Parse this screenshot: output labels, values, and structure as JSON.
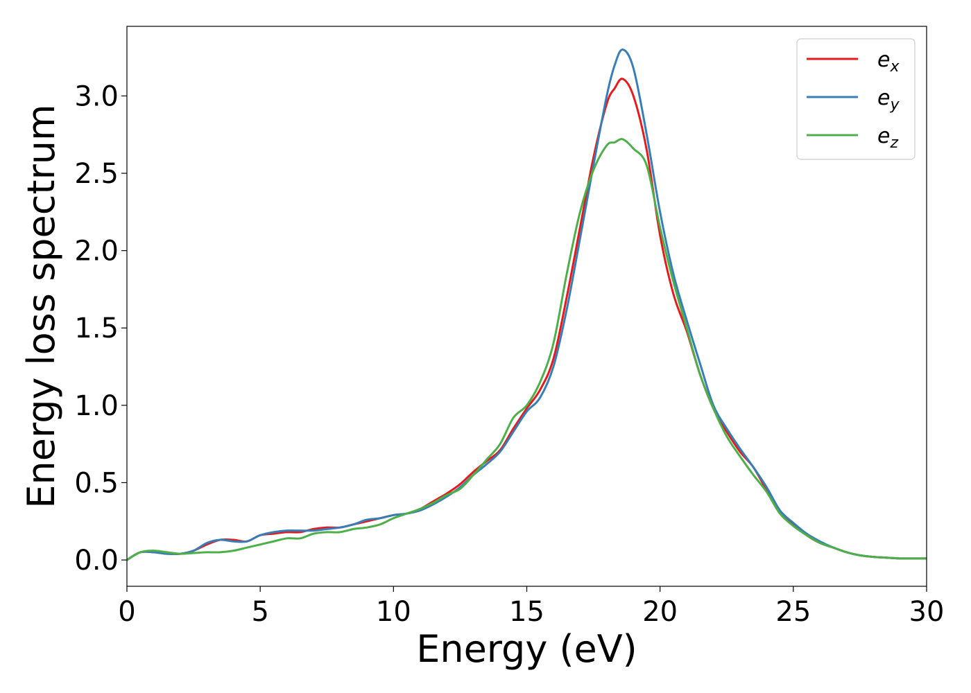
{
  "chart_data": {
    "type": "line",
    "title": "",
    "xlabel": "Energy (eV)",
    "ylabel": "Energy loss spectrum",
    "xlim": [
      0,
      30
    ],
    "ylim": [
      -0.17,
      3.45
    ],
    "xticks": [
      0,
      5,
      10,
      15,
      20,
      25,
      30
    ],
    "yticks": [
      0.0,
      0.5,
      1.0,
      1.5,
      2.0,
      2.5,
      3.0
    ],
    "xtick_labels": [
      "0",
      "5",
      "10",
      "15",
      "20",
      "25",
      "30"
    ],
    "ytick_labels": [
      "0.0",
      "0.5",
      "1.0",
      "1.5",
      "2.0",
      "2.5",
      "3.0"
    ],
    "grid": false,
    "legend_position": "top-right",
    "x": [
      0,
      0.5,
      1,
      1.5,
      2,
      2.5,
      3,
      3.5,
      4,
      4.5,
      5,
      5.5,
      6,
      6.5,
      7,
      7.5,
      8,
      8.5,
      9,
      9.5,
      10,
      10.5,
      11,
      11.5,
      12,
      12.5,
      13,
      13.5,
      14,
      14.5,
      15,
      15.5,
      16,
      16.5,
      17,
      17.5,
      18,
      18.3,
      18.6,
      19,
      19.5,
      20,
      20.5,
      21,
      21.5,
      22,
      22.5,
      23,
      23.5,
      24,
      24.5,
      25,
      25.5,
      26,
      26.5,
      27,
      27.5,
      28,
      28.5,
      29,
      29.5,
      30
    ],
    "series": [
      {
        "name": "e",
        "subscript": "x",
        "color": "#e41a1c",
        "values": [
          0.0,
          0.05,
          0.05,
          0.04,
          0.04,
          0.06,
          0.1,
          0.13,
          0.13,
          0.12,
          0.16,
          0.17,
          0.18,
          0.18,
          0.2,
          0.21,
          0.21,
          0.23,
          0.25,
          0.27,
          0.29,
          0.3,
          0.33,
          0.38,
          0.43,
          0.49,
          0.57,
          0.64,
          0.71,
          0.85,
          0.98,
          1.1,
          1.3,
          1.7,
          2.15,
          2.6,
          2.95,
          3.05,
          3.11,
          3.0,
          2.65,
          2.1,
          1.72,
          1.48,
          1.2,
          0.98,
          0.83,
          0.7,
          0.6,
          0.45,
          0.3,
          0.23,
          0.16,
          0.11,
          0.08,
          0.05,
          0.03,
          0.02,
          0.015,
          0.01,
          0.01,
          0.01
        ]
      },
      {
        "name": "e",
        "subscript": "y",
        "color": "#377eb8",
        "values": [
          0.0,
          0.05,
          0.05,
          0.04,
          0.04,
          0.06,
          0.11,
          0.13,
          0.12,
          0.12,
          0.16,
          0.18,
          0.19,
          0.19,
          0.19,
          0.2,
          0.21,
          0.23,
          0.26,
          0.27,
          0.29,
          0.3,
          0.32,
          0.36,
          0.41,
          0.47,
          0.55,
          0.62,
          0.7,
          0.83,
          0.96,
          1.05,
          1.25,
          1.62,
          2.08,
          2.55,
          3.0,
          3.2,
          3.3,
          3.18,
          2.75,
          2.25,
          1.85,
          1.55,
          1.27,
          1.0,
          0.85,
          0.72,
          0.6,
          0.47,
          0.32,
          0.24,
          0.17,
          0.12,
          0.08,
          0.05,
          0.03,
          0.02,
          0.015,
          0.01,
          0.01,
          0.01
        ]
      },
      {
        "name": "e",
        "subscript": "z",
        "color": "#4daf4a",
        "values": [
          0.0,
          0.05,
          0.06,
          0.05,
          0.04,
          0.045,
          0.05,
          0.05,
          0.06,
          0.08,
          0.1,
          0.12,
          0.14,
          0.14,
          0.17,
          0.18,
          0.18,
          0.2,
          0.21,
          0.23,
          0.27,
          0.3,
          0.33,
          0.37,
          0.42,
          0.46,
          0.55,
          0.65,
          0.75,
          0.92,
          1.0,
          1.15,
          1.4,
          1.85,
          2.25,
          2.52,
          2.68,
          2.7,
          2.72,
          2.66,
          2.55,
          2.15,
          1.8,
          1.5,
          1.2,
          0.98,
          0.8,
          0.67,
          0.55,
          0.44,
          0.3,
          0.22,
          0.16,
          0.11,
          0.08,
          0.05,
          0.03,
          0.02,
          0.015,
          0.01,
          0.01,
          0.01
        ]
      }
    ]
  }
}
